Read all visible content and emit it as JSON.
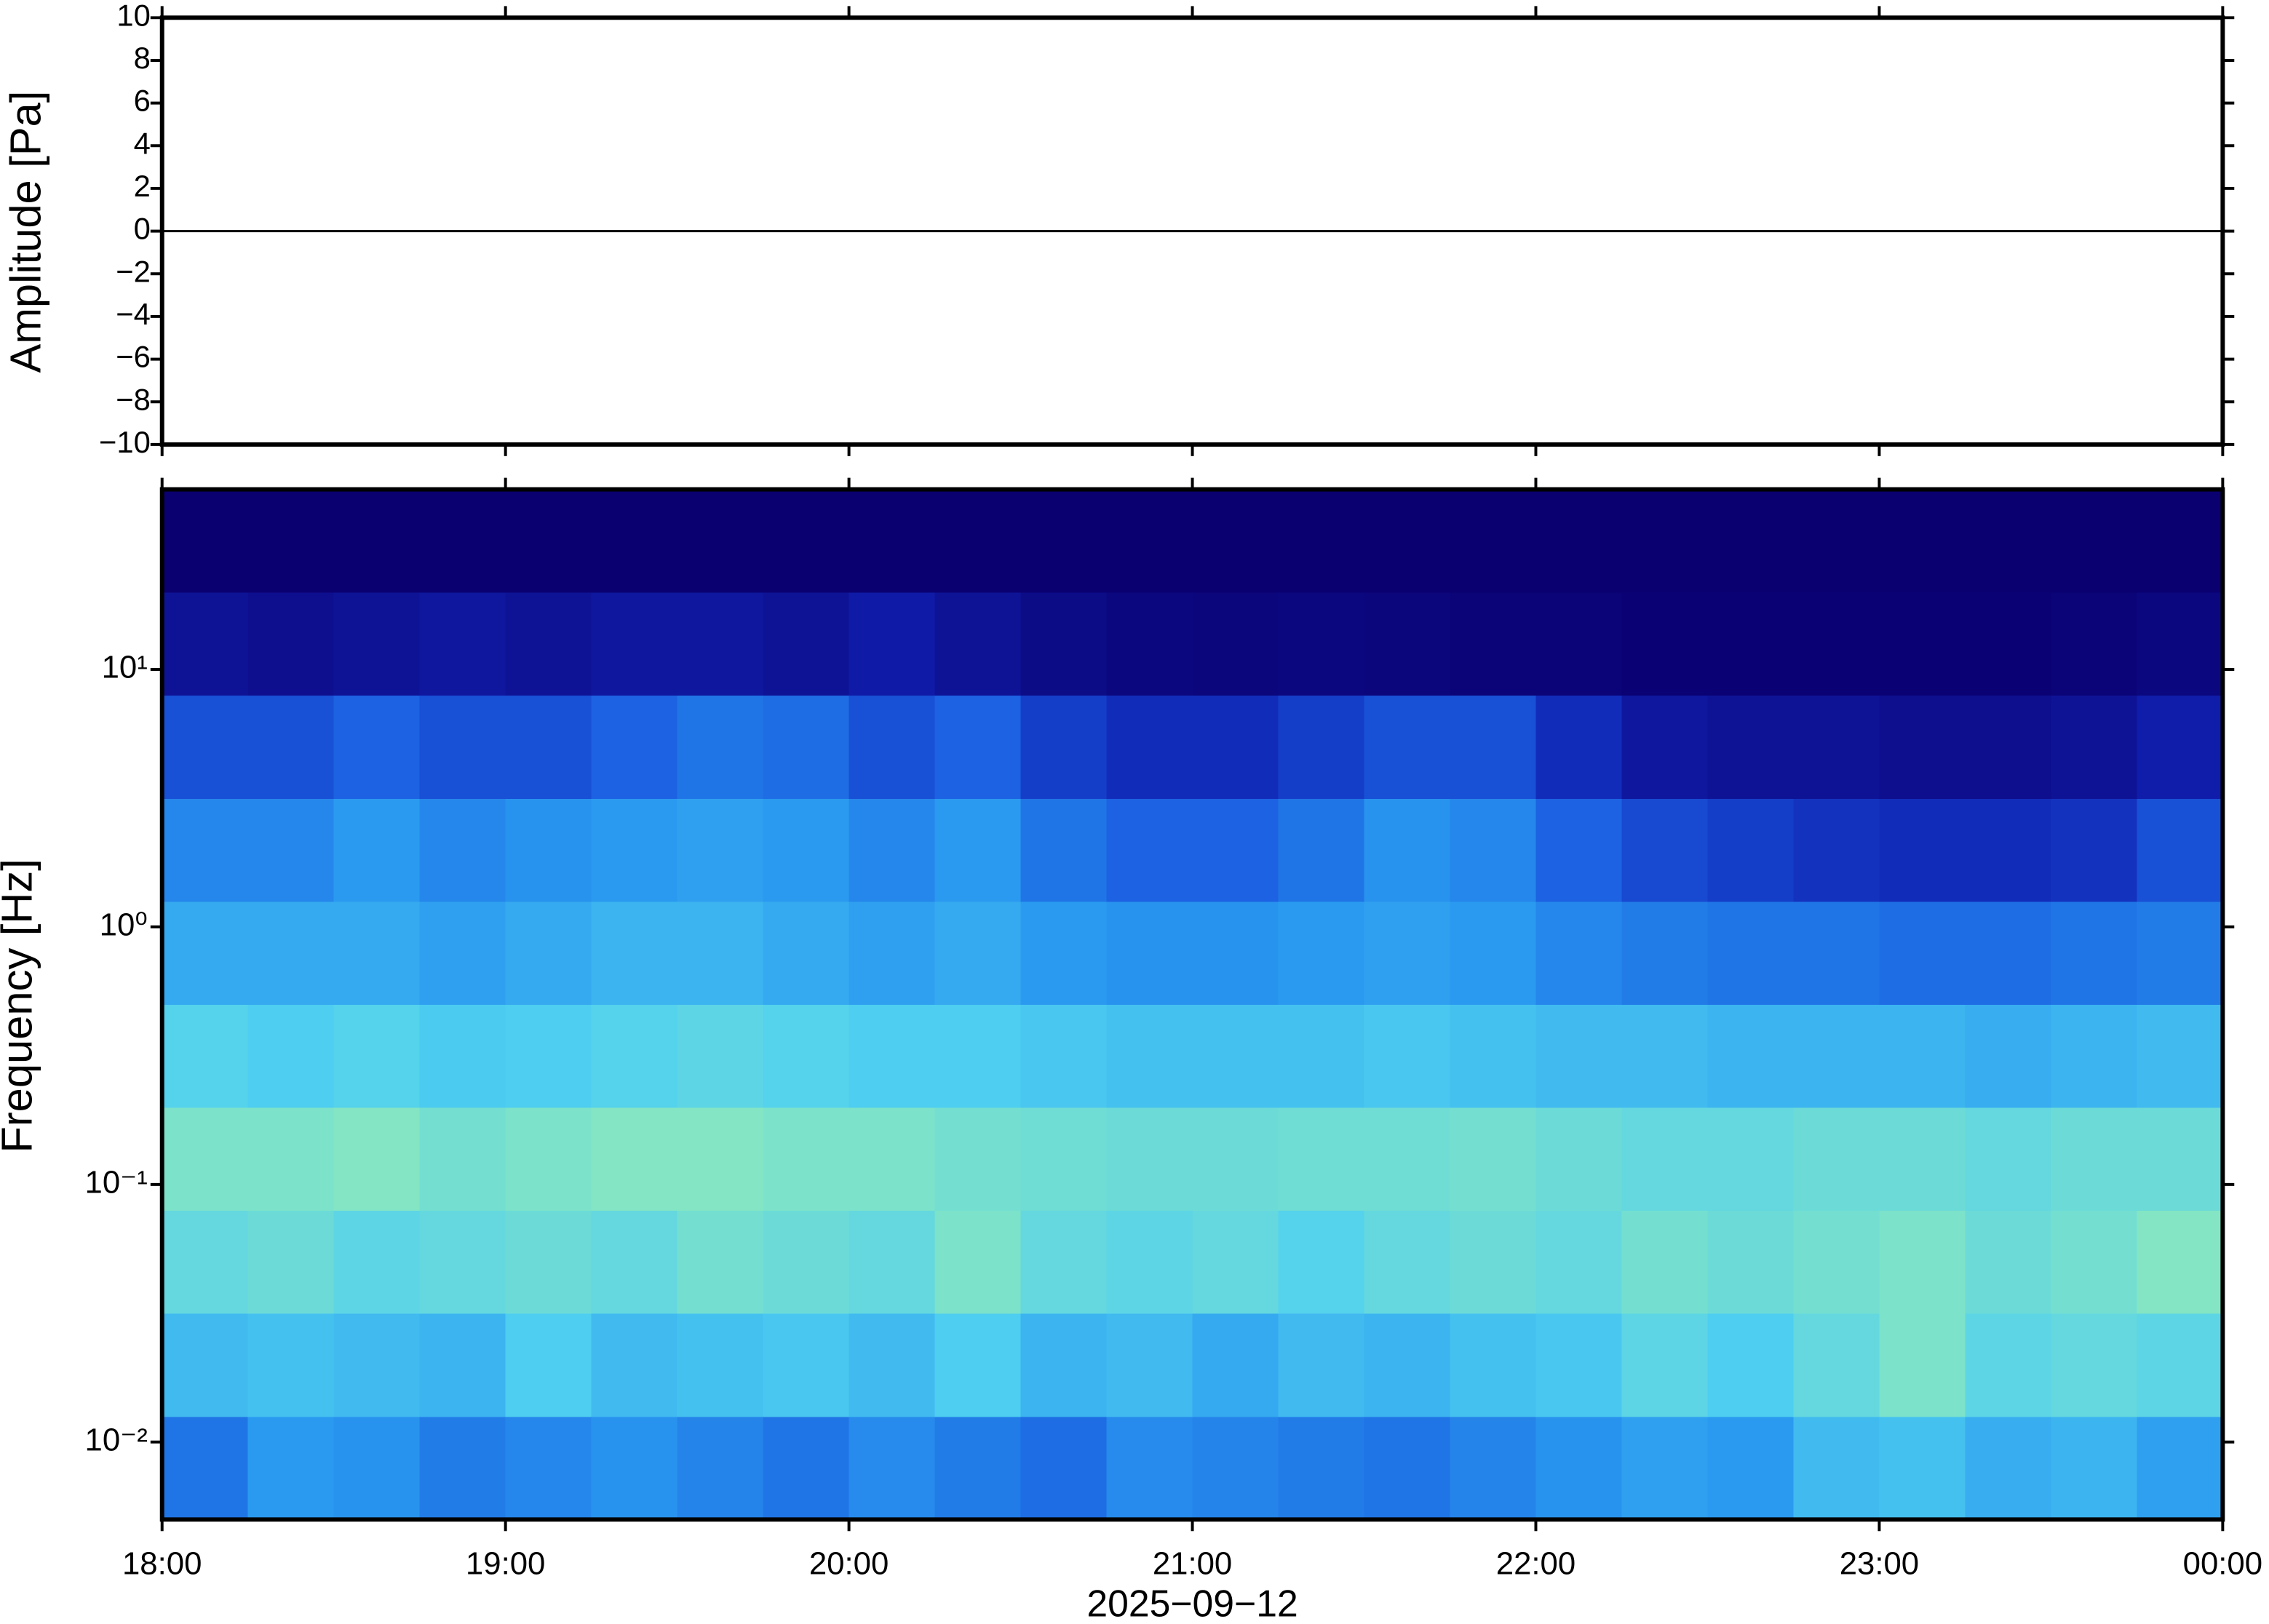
{
  "chart_data": [
    {
      "type": "line",
      "ylabel": "Amplitude [Pa]",
      "x": [
        18,
        19,
        20,
        21,
        22,
        23,
        24
      ],
      "values": [
        0,
        0,
        0,
        0,
        0,
        0,
        0
      ],
      "color": "#000000",
      "xlim": [
        18,
        24
      ],
      "ylim": [
        -10,
        10
      ],
      "yticks": [
        {
          "value": -10,
          "label": "−10"
        },
        {
          "value": -8,
          "label": "−8"
        },
        {
          "value": -6,
          "label": "−6"
        },
        {
          "value": -4,
          "label": "−4"
        },
        {
          "value": -2,
          "label": "−2"
        },
        0,
        2,
        4,
        6,
        8,
        10
      ]
    },
    {
      "type": "heatmap",
      "ylabel": "Frequency [Hz]",
      "xlabel": "2025−09−12",
      "xlim": [
        18,
        24
      ],
      "xticks": [
        {
          "value": 18,
          "label": "18:00"
        },
        {
          "value": 19,
          "label": "19:00"
        },
        {
          "value": 20,
          "label": "20:00"
        },
        {
          "value": 21,
          "label": "21:00"
        },
        {
          "value": 22,
          "label": "22:00"
        },
        {
          "value": 23,
          "label": "23:00"
        },
        {
          "value": 24,
          "label": "00:00"
        }
      ],
      "ylim": [
        0.005,
        50
      ],
      "log_y": true,
      "yticks": [
        {
          "value": 0.01,
          "label": "10⁻²"
        },
        {
          "value": 0.1,
          "label": "10⁻¹"
        },
        {
          "value": 1,
          "label": "10⁰"
        },
        {
          "value": 10,
          "label": "10¹"
        }
      ],
      "x_edges": [
        18,
        18.25,
        18.5,
        18.75,
        19,
        19.25,
        19.5,
        19.75,
        20,
        20.25,
        20.5,
        20.75,
        21,
        21.25,
        21.5,
        21.75,
        22,
        22.25,
        22.5,
        22.75,
        23,
        23.25,
        23.5,
        23.75,
        24
      ],
      "y_edges": [
        0.005,
        0.0126,
        0.0317,
        0.0796,
        0.2,
        0.502,
        1.26,
        3.17,
        7.96,
        20,
        50
      ],
      "colormap": [
        "#0a0070",
        "#1020b0",
        "#1a5ce0",
        "#2a9af0",
        "#50d0f0",
        "#90eab8",
        "#e0f890"
      ],
      "values": [
        [
          0.4,
          0.5,
          0.48,
          0.42,
          0.45,
          0.48,
          0.44,
          0.4,
          0.46,
          0.42,
          0.38,
          0.46,
          0.44,
          0.42,
          0.4,
          0.44,
          0.48,
          0.52,
          0.5,
          0.6,
          0.62,
          0.56,
          0.58,
          0.52
        ],
        [
          0.6,
          0.62,
          0.6,
          0.58,
          0.66,
          0.6,
          0.62,
          0.64,
          0.6,
          0.66,
          0.58,
          0.6,
          0.55,
          0.6,
          0.58,
          0.62,
          0.64,
          0.7,
          0.66,
          0.72,
          0.78,
          0.7,
          0.72,
          0.7
        ],
        [
          0.72,
          0.74,
          0.7,
          0.72,
          0.74,
          0.72,
          0.76,
          0.74,
          0.72,
          0.78,
          0.72,
          0.7,
          0.72,
          0.68,
          0.72,
          0.74,
          0.72,
          0.76,
          0.74,
          0.76,
          0.78,
          0.74,
          0.76,
          0.8
        ],
        [
          0.78,
          0.78,
          0.8,
          0.76,
          0.78,
          0.8,
          0.8,
          0.78,
          0.78,
          0.76,
          0.75,
          0.74,
          0.74,
          0.75,
          0.75,
          0.76,
          0.74,
          0.72,
          0.72,
          0.74,
          0.74,
          0.72,
          0.74,
          0.74
        ],
        [
          0.68,
          0.66,
          0.68,
          0.65,
          0.66,
          0.68,
          0.7,
          0.68,
          0.66,
          0.66,
          0.64,
          0.62,
          0.62,
          0.62,
          0.64,
          0.62,
          0.6,
          0.6,
          0.58,
          0.58,
          0.58,
          0.56,
          0.58,
          0.6
        ],
        [
          0.55,
          0.55,
          0.55,
          0.52,
          0.55,
          0.58,
          0.58,
          0.55,
          0.52,
          0.55,
          0.5,
          0.48,
          0.48,
          0.5,
          0.52,
          0.5,
          0.45,
          0.42,
          0.4,
          0.4,
          0.38,
          0.38,
          0.4,
          0.42
        ],
        [
          0.45,
          0.45,
          0.5,
          0.45,
          0.48,
          0.5,
          0.52,
          0.5,
          0.45,
          0.5,
          0.4,
          0.35,
          0.35,
          0.4,
          0.48,
          0.45,
          0.35,
          0.28,
          0.25,
          0.22,
          0.2,
          0.2,
          0.22,
          0.3
        ],
        [
          0.3,
          0.3,
          0.35,
          0.3,
          0.3,
          0.35,
          0.4,
          0.38,
          0.3,
          0.35,
          0.25,
          0.2,
          0.2,
          0.25,
          0.3,
          0.3,
          0.2,
          0.12,
          0.1,
          0.1,
          0.08,
          0.08,
          0.1,
          0.15
        ],
        [
          0.1,
          0.08,
          0.1,
          0.12,
          0.1,
          0.12,
          0.12,
          0.1,
          0.14,
          0.1,
          0.06,
          0.04,
          0.03,
          0.04,
          0.03,
          0.02,
          0.02,
          0.01,
          0.01,
          0.01,
          0.01,
          0.01,
          0.02,
          0.04
        ],
        [
          0,
          0,
          0,
          0,
          0,
          0,
          0,
          0,
          0,
          0,
          0,
          0,
          0,
          0,
          0,
          0,
          0,
          0,
          0,
          0,
          0,
          0,
          0,
          0
        ]
      ]
    }
  ]
}
